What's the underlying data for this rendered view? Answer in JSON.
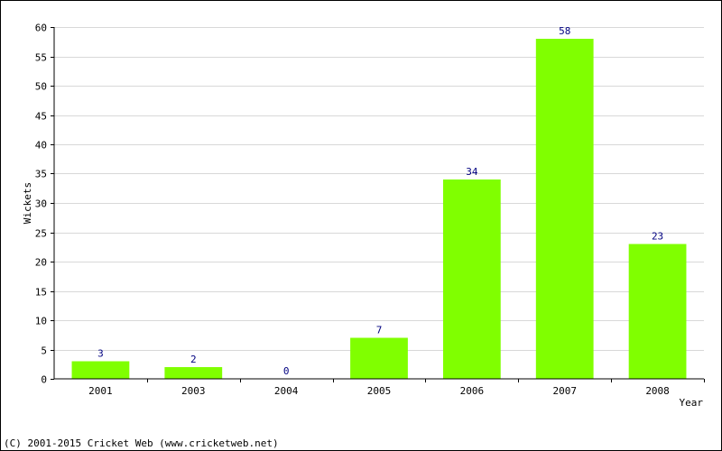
{
  "chart_data": {
    "type": "bar",
    "categories": [
      "2001",
      "2003",
      "2004",
      "2005",
      "2006",
      "2007",
      "2008"
    ],
    "values": [
      3,
      2,
      0,
      7,
      34,
      58,
      23
    ],
    "value_labels": [
      "3",
      "2",
      "0",
      "7",
      "34",
      "58",
      "23"
    ],
    "xlabel": "Year",
    "ylabel": "Wickets",
    "ylim": [
      0,
      60
    ],
    "yticks": [
      0,
      5,
      10,
      15,
      20,
      25,
      30,
      35,
      40,
      45,
      50,
      55,
      60
    ],
    "grid": "horizontal",
    "colors": {
      "bar": "#80ff00",
      "value_label": "#000080",
      "grid": "#d8d8d8",
      "axis": "#000000"
    }
  },
  "footer": {
    "copyright": "(C) 2001-2015 Cricket Web (www.cricketweb.net)"
  }
}
